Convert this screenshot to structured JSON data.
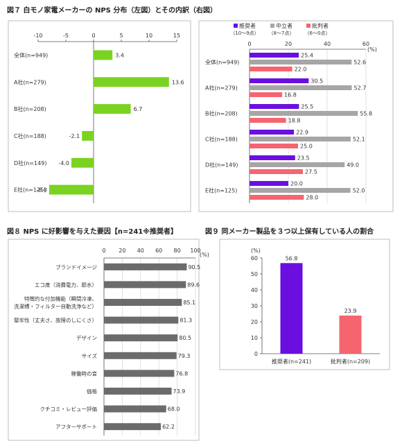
{
  "chart_data": [
    {
      "type": "bar",
      "orientation": "horizontal",
      "title": "図７ 白モノ家電メーカーの NPS 分布（左図）とその内訳（右図）",
      "categories": [
        "全体(n=949)",
        "A社(n=279)",
        "B社(n=208)",
        "C社(n=188)",
        "D社(n=149)",
        "E社(n=125)"
      ],
      "values": [
        3.4,
        13.6,
        6.7,
        -2.1,
        -4.0,
        -8.0
      ],
      "xlim": [
        -10,
        15
      ],
      "xticks": [
        "-10",
        "-5",
        "0",
        "5",
        "10",
        "15"
      ],
      "grid": false,
      "color": "#7ad321"
    },
    {
      "type": "bar",
      "orientation": "horizontal",
      "categories": [
        "全体(n=949)",
        "A社(n=279)",
        "B社(n=208)",
        "C社(n=188)",
        "D社(n=149)",
        "E社(n=125)"
      ],
      "unit": "(%)",
      "xlim": [
        0,
        60
      ],
      "xticks": [
        "0",
        "20",
        "40",
        "60"
      ],
      "grid": true,
      "legend_position": "top",
      "series": [
        {
          "name": "推奨者",
          "sub": "（10～9点）",
          "color": "#6a0fe0",
          "values": [
            25.4,
            30.5,
            25.5,
            22.9,
            23.5,
            20.0
          ]
        },
        {
          "name": "中立者",
          "sub": "（8～7点）",
          "color": "#a6a6a6",
          "values": [
            52.6,
            52.7,
            55.8,
            52.1,
            49.0,
            52.0
          ]
        },
        {
          "name": "批判者",
          "sub": "（6～0点）",
          "color": "#f56570",
          "values": [
            22.0,
            16.8,
            18.8,
            25.0,
            27.5,
            28.0
          ]
        }
      ]
    },
    {
      "type": "bar",
      "orientation": "horizontal",
      "title": "図８ NPS に好影響を与えた要因【n=241※推奨者】",
      "categories": [
        "ブランドイメージ",
        "エコ度（消費電力、節水）",
        "特徴的な付加機能（瞬間冷凍、洗濯槽・フィルター自動洗浄など）",
        "堅牢性（丈夫さ、故障のしにくさ）",
        "デザイン",
        "サイズ",
        "稼働時の音",
        "価格",
        "クチコミ・レビュー評価",
        "アフターサポート"
      ],
      "category_lines": [
        [
          "ブランドイメージ"
        ],
        [
          "エコ度（消費電力、節水）"
        ],
        [
          "特徴的な付加機能（瞬間冷凍、",
          "洗濯槽・フィルター自動洗浄など）"
        ],
        [
          "堅牢性（丈夫さ、故障のしにくさ）"
        ],
        [
          "デザイン"
        ],
        [
          "サイズ"
        ],
        [
          "稼働時の音"
        ],
        [
          "価格"
        ],
        [
          "クチコミ・レビュー評価"
        ],
        [
          "アフターサポート"
        ]
      ],
      "values": [
        90.5,
        89.6,
        85.1,
        81.3,
        80.5,
        79.3,
        76.8,
        73.9,
        68.0,
        62.2
      ],
      "unit": "(%)",
      "xlim": [
        0,
        100
      ],
      "xticks": [
        "0",
        "20",
        "40",
        "60",
        "80",
        "100"
      ],
      "grid": true,
      "color": "#6b6b6b"
    },
    {
      "type": "bar",
      "orientation": "vertical",
      "title": "図９ 同メーカー製品を３つ以上保有している人の割合",
      "categories": [
        "推奨者(n=241)",
        "批判者(n=209)"
      ],
      "values": [
        56.8,
        23.9
      ],
      "colors": [
        "#6a0fe0",
        "#f56570"
      ],
      "unit": "(%)",
      "ylim": [
        0,
        60
      ],
      "yticks": [
        "0",
        "10",
        "20",
        "30",
        "40",
        "50",
        "60"
      ],
      "grid": false
    }
  ]
}
